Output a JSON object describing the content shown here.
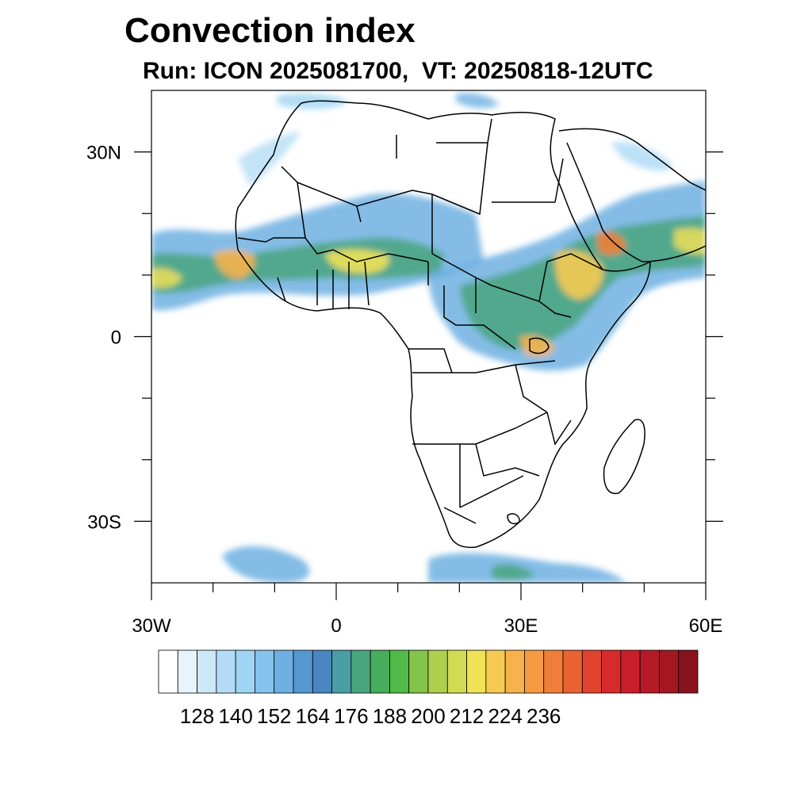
{
  "title": "Convection index",
  "subtitle": "Run: ICON 2025081700,  VT: 20250818-12UTC",
  "map": {
    "region": "Africa",
    "lon_range": [
      -30,
      60
    ],
    "lat_range": [
      -40,
      40
    ],
    "x_ticks": [
      {
        "lon": -30,
        "label": "30W"
      },
      {
        "lon": 0,
        "label": "0"
      },
      {
        "lon": 30,
        "label": "30E"
      },
      {
        "lon": 60,
        "label": "60E"
      }
    ],
    "y_ticks": [
      {
        "lat": 30,
        "label": "30N"
      },
      {
        "lat": 0,
        "label": "0"
      },
      {
        "lat": -30,
        "label": "30S"
      }
    ],
    "minor_x_lons": [
      -20,
      -10,
      10,
      20,
      40,
      50
    ],
    "minor_y_lats": [
      20,
      10,
      -10,
      -20
    ]
  },
  "colorbar": {
    "colors": [
      "#ffffff",
      "#e8f4fc",
      "#cde9f8",
      "#b4ddf5",
      "#9fd4f3",
      "#86c2ec",
      "#6fb0e2",
      "#5698d0",
      "#4a86bf",
      "#4a9ea6",
      "#4aa67e",
      "#46ae5c",
      "#52ba46",
      "#84c44a",
      "#aed04c",
      "#d2dc52",
      "#efe256",
      "#f6ca52",
      "#f6b24c",
      "#f59a42",
      "#f07e38",
      "#ea6232",
      "#e0442e",
      "#d82a2c",
      "#c81e2a",
      "#b61a26",
      "#a41622",
      "#8a121e"
    ],
    "labels": [
      "128",
      "140",
      "152",
      "164",
      "176",
      "188",
      "200",
      "212",
      "224",
      "236"
    ]
  }
}
